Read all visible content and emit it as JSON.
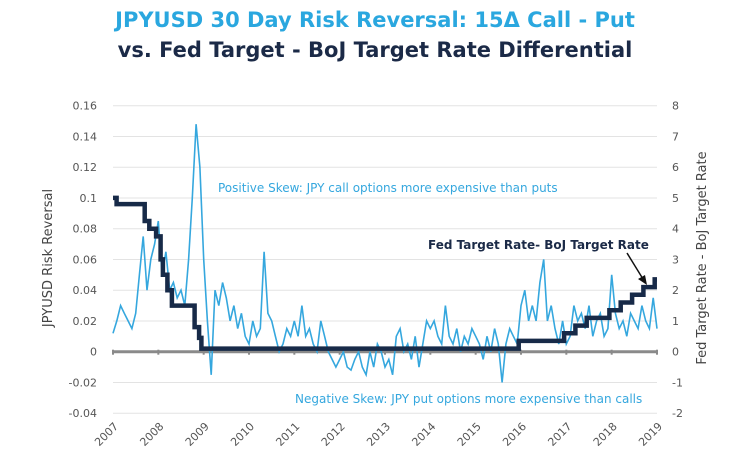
{
  "chart_data": {
    "type": "line",
    "title": "JPYUSD 30 Day Risk Reversal: 15Δ Call - Put",
    "subtitle": "vs. Fed Target - BoJ Target Rate Differential",
    "ylabel": "JPYUSD Risk Reversal",
    "ylabel_right": "Fed Target Rate - BoJ Target Rate",
    "ylim": [
      -0.04,
      0.16
    ],
    "ylim_right": [
      -2,
      8
    ],
    "xlim": [
      2007,
      2019
    ],
    "grid": true,
    "x_ticks": [
      "2007",
      "2008",
      "2009",
      "2010",
      "2011",
      "2012",
      "2013",
      "2014",
      "2015",
      "2016",
      "2017",
      "2018",
      "2019"
    ],
    "y_ticks": [
      "0.16",
      "0.14",
      "0.12",
      "0.1",
      "0.08",
      "0.06",
      "0.04",
      "0.02",
      "0",
      "-0.02",
      "-0.04"
    ],
    "y_ticks_right": [
      "8",
      "7",
      "6",
      "5",
      "4",
      "3",
      "2",
      "1",
      "0",
      "-1",
      "-2"
    ],
    "annotations": {
      "positive": "Positive Skew: JPY call options more expensive than puts",
      "negative": "Negative Skew: JPY put options more expensive than calls",
      "differential": "Fed Target Rate- BoJ Target Rate"
    },
    "colors": {
      "risk_reversal": "#35a7de",
      "differential": "#172a48",
      "zero_line": "#8a8a8a",
      "grid": "#e3e3e3"
    },
    "series": [
      {
        "axis": "left",
        "start": 2007,
        "step": "monthly",
        "values": [
          0.012,
          0.02,
          0.03,
          0.025,
          0.02,
          0.015,
          0.025,
          0.05,
          0.075,
          0.04,
          0.06,
          0.07,
          0.085,
          0.05,
          0.065,
          0.04,
          0.045,
          0.035,
          0.04,
          0.03,
          0.06,
          0.1,
          0.148,
          0.12,
          0.06,
          0.02,
          -0.015,
          0.04,
          0.03,
          0.045,
          0.035,
          0.02,
          0.03,
          0.015,
          0.025,
          0.01,
          0.005,
          0.02,
          0.01,
          0.015,
          0.065,
          0.025,
          0.02,
          0.01,
          0.0,
          0.005,
          0.015,
          0.01,
          0.02,
          0.01,
          0.03,
          0.01,
          0.015,
          0.005,
          0.0,
          0.02,
          0.01,
          0.0,
          -0.005,
          -0.01,
          -0.005,
          0.0,
          -0.01,
          -0.012,
          -0.005,
          0.0,
          -0.01,
          -0.015,
          0.0,
          -0.01,
          0.005,
          0.0,
          -0.01,
          -0.005,
          -0.015,
          0.01,
          0.015,
          0.0,
          0.005,
          -0.005,
          0.01,
          -0.01,
          0.005,
          0.02,
          0.015,
          0.02,
          0.01,
          0.005,
          0.03,
          0.01,
          0.005,
          0.015,
          0.0,
          0.01,
          0.005,
          0.015,
          0.01,
          0.005,
          -0.005,
          0.01,
          0.0,
          0.015,
          0.005,
          -0.02,
          0.005,
          0.015,
          0.01,
          0.005,
          0.03,
          0.04,
          0.02,
          0.03,
          0.02,
          0.045,
          0.06,
          0.02,
          0.03,
          0.015,
          0.005,
          0.02,
          0.005,
          0.01,
          0.03,
          0.02,
          0.025,
          0.015,
          0.03,
          0.01,
          0.02,
          0.025,
          0.01,
          0.015,
          0.05,
          0.025,
          0.015,
          0.02,
          0.01,
          0.025,
          0.02,
          0.015,
          0.03,
          0.02,
          0.015,
          0.035,
          0.015
        ]
      },
      {
        "name": "Fed Target Rate- BoJ Target Rate",
        "axis": "right",
        "type": "step",
        "x": [
          2007.0,
          2007.08,
          2007.7,
          2007.8,
          2007.95,
          2008.05,
          2008.1,
          2008.2,
          2008.3,
          2008.8,
          2008.9,
          2008.95,
          2015.95,
          2016.95,
          2017.2,
          2017.45,
          2017.95,
          2018.2,
          2018.45,
          2018.7,
          2018.95,
          2019.0
        ],
        "values": [
          5.0,
          4.8,
          4.25,
          4.0,
          3.75,
          3.0,
          2.5,
          2.0,
          1.5,
          0.8,
          0.45,
          0.1,
          0.35,
          0.6,
          0.85,
          1.1,
          1.35,
          1.6,
          1.85,
          2.1,
          2.35,
          2.35
        ]
      }
    ]
  }
}
